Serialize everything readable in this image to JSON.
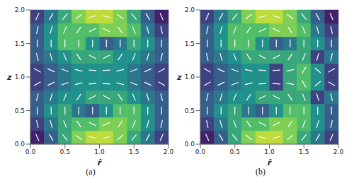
{
  "chart_data": [
    {
      "type": "heatmap",
      "title": "(a)",
      "xlabel": "r̂",
      "ylabel": "z",
      "xlim": [
        0,
        2
      ],
      "ylim": [
        0,
        2
      ],
      "xticks": [
        {
          "value": 0,
          "label": "0.0"
        },
        {
          "value": 0.5,
          "label": "0.5"
        },
        {
          "value": 1,
          "label": "1.0"
        },
        {
          "value": 1.5,
          "label": "1.5"
        },
        {
          "value": 2,
          "label": "2.0"
        }
      ],
      "yticks": [
        {
          "value": 0,
          "label": "0.0"
        },
        {
          "value": 0.5,
          "label": "0.5"
        },
        {
          "value": 1,
          "label": "1.0"
        },
        {
          "value": 1.5,
          "label": "1.5"
        },
        {
          "value": 2,
          "label": "2.0"
        }
      ],
      "x_edges": [
        0,
        0.2,
        0.4,
        0.6,
        0.8,
        1.0,
        1.2,
        1.4,
        1.6,
        1.8,
        2.0
      ],
      "y_edges": [
        0,
        0.2,
        0.4,
        0.6,
        0.8,
        1.0,
        1.2,
        1.4,
        1.6,
        1.8,
        2.0
      ],
      "color_range": [
        0,
        1
      ],
      "cells": [
        [
          0.1,
          0.3,
          0.6,
          0.8,
          0.9,
          0.9,
          0.8,
          0.6,
          0.4,
          0.2
        ],
        [
          0.2,
          0.4,
          0.6,
          0.7,
          0.7,
          0.8,
          0.8,
          0.7,
          0.5,
          0.3
        ],
        [
          0.3,
          0.5,
          0.6,
          0.4,
          0.3,
          0.5,
          0.7,
          0.7,
          0.5,
          0.3
        ],
        [
          0.3,
          0.4,
          0.5,
          0.5,
          0.6,
          0.6,
          0.6,
          0.5,
          0.4,
          0.3
        ],
        [
          0.2,
          0.3,
          0.4,
          0.5,
          0.5,
          0.5,
          0.5,
          0.4,
          0.3,
          0.2
        ],
        [
          0.2,
          0.3,
          0.4,
          0.5,
          0.5,
          0.5,
          0.5,
          0.4,
          0.3,
          0.2
        ],
        [
          0.3,
          0.4,
          0.5,
          0.6,
          0.6,
          0.6,
          0.5,
          0.5,
          0.4,
          0.3
        ],
        [
          0.3,
          0.5,
          0.7,
          0.7,
          0.5,
          0.3,
          0.4,
          0.6,
          0.5,
          0.3
        ],
        [
          0.3,
          0.5,
          0.7,
          0.7,
          0.7,
          0.8,
          0.8,
          0.7,
          0.4,
          0.2
        ],
        [
          0.2,
          0.4,
          0.6,
          0.8,
          0.9,
          0.9,
          0.8,
          0.6,
          0.3,
          0.1
        ]
      ],
      "angles": [
        [
          114,
          120,
          129,
          143,
          166,
          -166,
          -143,
          -129,
          -120,
          -114
        ],
        [
          102,
          106,
          112,
          124,
          153,
          -153,
          -124,
          -112,
          -106,
          -102
        ],
        [
          90,
          90,
          90,
          90,
          90,
          -90,
          -90,
          -90,
          -90,
          -90
        ],
        [
          77,
          74,
          68,
          56,
          27,
          -27,
          -56,
          -68,
          -74,
          -77
        ],
        [
          30,
          25,
          20,
          12,
          5,
          -5,
          -12,
          -20,
          -25,
          -30
        ],
        [
          -30,
          -25,
          -20,
          -12,
          -5,
          5,
          12,
          20,
          25,
          30
        ],
        [
          -77,
          -74,
          -68,
          -56,
          -27,
          27,
          56,
          68,
          74,
          77
        ],
        [
          -90,
          -90,
          -90,
          -90,
          -90,
          90,
          90,
          90,
          90,
          90
        ],
        [
          -102,
          -106,
          -112,
          -124,
          -153,
          153,
          124,
          112,
          106,
          102
        ],
        [
          -114,
          -120,
          -129,
          -143,
          -166,
          166,
          143,
          129,
          120,
          114
        ]
      ]
    },
    {
      "type": "heatmap",
      "title": "(b)",
      "xlabel": "r̂",
      "ylabel": "z",
      "xlim": [
        0,
        2
      ],
      "ylim": [
        0,
        2
      ],
      "xticks": [
        {
          "value": 0,
          "label": "0.0"
        },
        {
          "value": 0.5,
          "label": "0.5"
        },
        {
          "value": 1,
          "label": "1.0"
        },
        {
          "value": 1.5,
          "label": "1.5"
        },
        {
          "value": 2,
          "label": "2.0"
        }
      ],
      "yticks": [
        {
          "value": 0,
          "label": "0.0"
        },
        {
          "value": 0.5,
          "label": "0.5"
        },
        {
          "value": 1,
          "label": "1.0"
        },
        {
          "value": 1.5,
          "label": "1.5"
        },
        {
          "value": 2,
          "label": "2.0"
        }
      ],
      "x_edges": [
        0,
        0.2,
        0.4,
        0.6,
        0.8,
        1.0,
        1.2,
        1.4,
        1.6,
        1.8,
        2.0
      ],
      "y_edges": [
        0,
        0.2,
        0.4,
        0.6,
        0.8,
        1.0,
        1.2,
        1.4,
        1.6,
        1.8,
        2.0
      ],
      "color_range": [
        0,
        1
      ],
      "cells": [
        [
          0.1,
          0.3,
          0.6,
          0.8,
          0.9,
          0.9,
          0.8,
          0.6,
          0.4,
          0.2
        ],
        [
          0.2,
          0.4,
          0.6,
          0.7,
          0.7,
          0.8,
          0.8,
          0.7,
          0.5,
          0.3
        ],
        [
          0.3,
          0.5,
          0.6,
          0.4,
          0.3,
          0.5,
          0.7,
          0.7,
          0.5,
          0.3
        ],
        [
          0.3,
          0.4,
          0.5,
          0.5,
          0.6,
          0.6,
          0.6,
          0.6,
          0.2,
          0.4
        ],
        [
          0.2,
          0.3,
          0.4,
          0.5,
          0.5,
          0.2,
          0.6,
          0.7,
          0.5,
          0.2
        ],
        [
          0.2,
          0.3,
          0.4,
          0.5,
          0.5,
          0.2,
          0.6,
          0.7,
          0.5,
          0.2
        ],
        [
          0.3,
          0.4,
          0.5,
          0.6,
          0.6,
          0.6,
          0.6,
          0.6,
          0.2,
          0.4
        ],
        [
          0.3,
          0.5,
          0.7,
          0.7,
          0.5,
          0.3,
          0.4,
          0.6,
          0.5,
          0.3
        ],
        [
          0.3,
          0.5,
          0.7,
          0.7,
          0.7,
          0.8,
          0.8,
          0.7,
          0.4,
          0.2
        ],
        [
          0.2,
          0.4,
          0.6,
          0.8,
          0.9,
          0.9,
          0.8,
          0.6,
          0.3,
          0.1
        ]
      ],
      "angles": [
        [
          114,
          120,
          129,
          143,
          166,
          -166,
          -143,
          -129,
          -120,
          -114
        ],
        [
          102,
          106,
          112,
          124,
          153,
          -153,
          -124,
          -112,
          -106,
          -102
        ],
        [
          90,
          90,
          90,
          90,
          90,
          -90,
          -90,
          -90,
          -90,
          -90
        ],
        [
          77,
          74,
          68,
          56,
          27,
          -27,
          -56,
          -68,
          -74,
          -77
        ],
        [
          30,
          25,
          20,
          12,
          5,
          -5,
          -12,
          -60,
          40,
          -30
        ],
        [
          -30,
          -25,
          -20,
          -12,
          -5,
          5,
          12,
          60,
          -40,
          30
        ],
        [
          -77,
          -74,
          -68,
          -56,
          -27,
          27,
          56,
          68,
          74,
          77
        ],
        [
          -90,
          -90,
          -90,
          -90,
          -90,
          90,
          90,
          90,
          90,
          90
        ],
        [
          -102,
          -106,
          -112,
          -124,
          -153,
          153,
          124,
          112,
          106,
          102
        ],
        [
          -114,
          -120,
          -129,
          -143,
          -166,
          166,
          143,
          129,
          120,
          114
        ]
      ]
    }
  ]
}
